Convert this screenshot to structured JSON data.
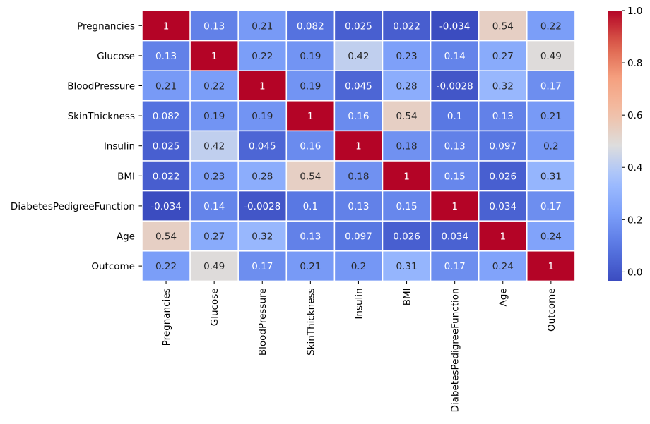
{
  "chart_data": {
    "type": "heatmap",
    "rows": [
      "Pregnancies",
      "Glucose",
      "BloodPressure",
      "SkinThickness",
      "Insulin",
      "BMI",
      "DiabetesPedigreeFunction",
      "Age",
      "Outcome"
    ],
    "columns": [
      "Pregnancies",
      "Glucose",
      "BloodPressure",
      "SkinThickness",
      "Insulin",
      "BMI",
      "DiabetesPedigreeFunction",
      "Age",
      "Outcome"
    ],
    "values": [
      [
        1,
        0.13,
        0.21,
        0.082,
        0.025,
        0.022,
        -0.034,
        0.54,
        0.22
      ],
      [
        0.13,
        1,
        0.22,
        0.19,
        0.42,
        0.23,
        0.14,
        0.27,
        0.49
      ],
      [
        0.21,
        0.22,
        1,
        0.19,
        0.045,
        0.28,
        -0.0028,
        0.32,
        0.17
      ],
      [
        0.082,
        0.19,
        0.19,
        1,
        0.16,
        0.54,
        0.1,
        0.13,
        0.21
      ],
      [
        0.025,
        0.42,
        0.045,
        0.16,
        1,
        0.18,
        0.13,
        0.097,
        0.2
      ],
      [
        0.022,
        0.23,
        0.28,
        0.54,
        0.18,
        1,
        0.15,
        0.026,
        0.31
      ],
      [
        -0.034,
        0.14,
        -0.0028,
        0.1,
        0.13,
        0.15,
        1,
        0.034,
        0.17
      ],
      [
        0.54,
        0.27,
        0.32,
        0.13,
        0.097,
        0.026,
        0.034,
        1,
        0.24
      ],
      [
        0.22,
        0.49,
        0.17,
        0.21,
        0.2,
        0.31,
        0.17,
        0.24,
        1
      ]
    ],
    "cell_labels": [
      [
        "1",
        "0.13",
        "0.21",
        "0.082",
        "0.025",
        "0.022",
        "-0.034",
        "0.54",
        "0.22"
      ],
      [
        "0.13",
        "1",
        "0.22",
        "0.19",
        "0.42",
        "0.23",
        "0.14",
        "0.27",
        "0.49"
      ],
      [
        "0.21",
        "0.22",
        "1",
        "0.19",
        "0.045",
        "0.28",
        "-0.0028",
        "0.32",
        "0.17"
      ],
      [
        "0.082",
        "0.19",
        "0.19",
        "1",
        "0.16",
        "0.54",
        "0.1",
        "0.13",
        "0.21"
      ],
      [
        "0.025",
        "0.42",
        "0.045",
        "0.16",
        "1",
        "0.18",
        "0.13",
        "0.097",
        "0.2"
      ],
      [
        "0.022",
        "0.23",
        "0.28",
        "0.54",
        "0.18",
        "1",
        "0.15",
        "0.026",
        "0.31"
      ],
      [
        "-0.034",
        "0.14",
        "-0.0028",
        "0.1",
        "0.13",
        "0.15",
        "1",
        "0.034",
        "0.17"
      ],
      [
        "0.54",
        "0.27",
        "0.32",
        "0.13",
        "0.097",
        "0.026",
        "0.034",
        "1",
        "0.24"
      ],
      [
        "0.22",
        "0.49",
        "0.17",
        "0.21",
        "0.2",
        "0.31",
        "0.17",
        "0.24",
        "1"
      ]
    ],
    "colormap": "coolwarm",
    "colorbar": {
      "vmin": -0.034,
      "vmax": 1,
      "ticks": [
        0,
        0.2,
        0.4,
        0.6,
        0.8,
        1
      ],
      "tick_labels": [
        "0.0",
        "0.2",
        "0.4",
        "0.6",
        "0.8",
        "1.0"
      ]
    },
    "cell_border_color": "#ffffff",
    "text_color_dark": "#262626",
    "text_color_light": "#ffffff"
  }
}
